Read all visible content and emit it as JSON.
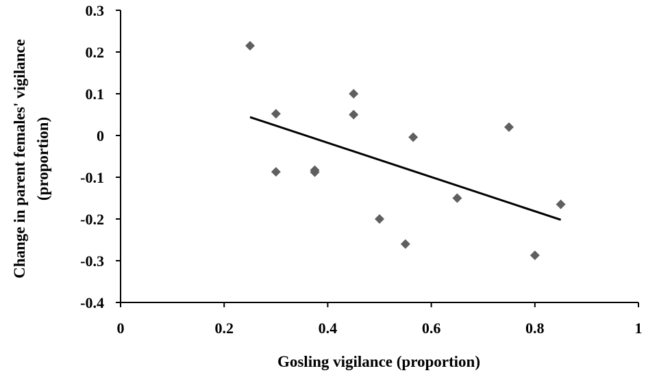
{
  "chart_data": {
    "type": "scatter",
    "title": "",
    "xlabel": "Gosling vigilance (proportion)",
    "ylabel_line1": "Change in parent females' vigilance",
    "ylabel_line2": "(proportion)",
    "xlim": [
      0,
      1
    ],
    "ylim": [
      -0.4,
      0.3
    ],
    "x_ticks": [
      0,
      0.2,
      0.4,
      0.6,
      0.8,
      1
    ],
    "x_tick_labels": [
      "0",
      "0.2",
      "0.4",
      "0.6",
      "0.8",
      "1"
    ],
    "y_ticks": [
      0.3,
      0.2,
      0.1,
      0,
      -0.1,
      -0.2,
      -0.3,
      -0.4
    ],
    "y_tick_labels": [
      "0.3",
      "0.2",
      "0.1",
      "0",
      "-0.1",
      "-0.2",
      "-0.3",
      "-0.4"
    ],
    "grid": false,
    "legend": "none",
    "marker": "diamond",
    "marker_color": "#5f5f5f",
    "line_color": "#000000",
    "series": [
      {
        "points": [
          {
            "x": 0.25,
            "y": 0.215
          },
          {
            "x": 0.3,
            "y": 0.052
          },
          {
            "x": 0.3,
            "y": -0.087
          },
          {
            "x": 0.375,
            "y": -0.083
          },
          {
            "x": 0.375,
            "y": -0.088
          },
          {
            "x": 0.45,
            "y": 0.1
          },
          {
            "x": 0.45,
            "y": 0.05
          },
          {
            "x": 0.5,
            "y": -0.2
          },
          {
            "x": 0.55,
            "y": -0.26
          },
          {
            "x": 0.565,
            "y": -0.004
          },
          {
            "x": 0.65,
            "y": -0.15
          },
          {
            "x": 0.75,
            "y": 0.02
          },
          {
            "x": 0.8,
            "y": -0.287
          },
          {
            "x": 0.85,
            "y": -0.165
          }
        ]
      }
    ],
    "trendline": {
      "type": "linear",
      "x": [
        0.25,
        0.85
      ],
      "y": [
        0.044,
        -0.202
      ]
    }
  }
}
